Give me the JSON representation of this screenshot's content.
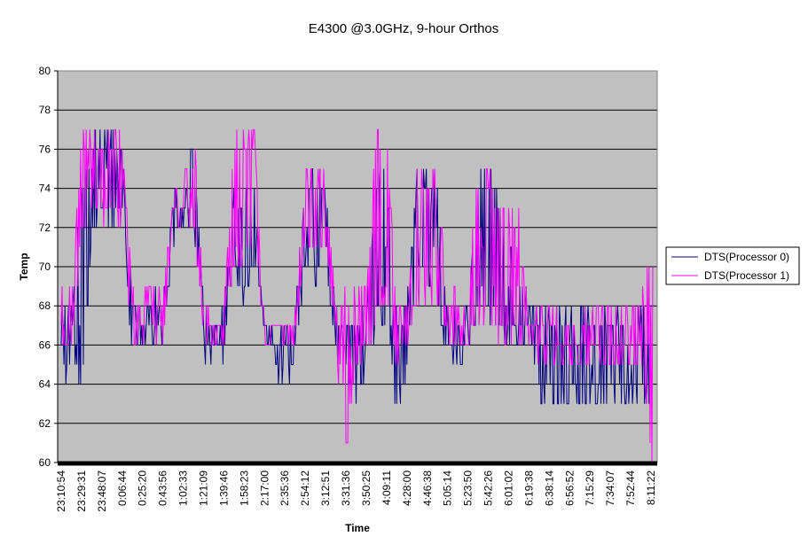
{
  "chart_data": {
    "type": "line",
    "title": "E4300 @3.0GHz, 9-hour Orthos",
    "xlabel": "Time",
    "ylabel": "Temp",
    "ylim": [
      60,
      80
    ],
    "yticks": [
      "60",
      "62",
      "64",
      "66",
      "68",
      "70",
      "72",
      "74",
      "76",
      "78",
      "80"
    ],
    "xticks": [
      "23:10:54",
      "23:29:31",
      "23:48:07",
      "0:06:44",
      "0:25:20",
      "0:43:56",
      "1:02:33",
      "1:21:09",
      "1:39:46",
      "1:58:23",
      "2:17:00",
      "2:35:36",
      "2:54:12",
      "3:12:51",
      "3:31:36",
      "3:50:25",
      "4:09:11",
      "4:28:00",
      "4:46:38",
      "5:05:14",
      "5:23:50",
      "5:42:26",
      "6:01:02",
      "6:19:38",
      "6:38:14",
      "6:56:52",
      "7:15:29",
      "7:34:07",
      "7:52:44",
      "8:11:22"
    ],
    "grid": true,
    "plot_background": "#c0c0c0",
    "legend_position": "right",
    "series": [
      {
        "name": "DTS(Processor 0)",
        "color": "#000080",
        "x": [
          0,
          0.5,
          1,
          1.5,
          2,
          2.5,
          3,
          3.5,
          4,
          4.5,
          5,
          5.5,
          6,
          6.5,
          7,
          7.5,
          8,
          8.5,
          9,
          9.5,
          10,
          10.5,
          11,
          11.5,
          12,
          12.5,
          13,
          13.5,
          14,
          14.5,
          15,
          15.5,
          16,
          16.5,
          17,
          17.5,
          18,
          18.5,
          19,
          19.5,
          20,
          20.5,
          21,
          21.5,
          22,
          22.5,
          23,
          23.5,
          24,
          24.5,
          25,
          25.5,
          26,
          26.5,
          27,
          27.5,
          28,
          28.5,
          29
        ],
        "low": [
          63,
          65,
          63,
          71,
          72,
          72,
          73,
          65,
          66,
          66,
          66,
          71,
          72,
          72,
          65,
          65,
          65,
          70,
          68,
          70,
          67,
          65,
          63,
          65,
          70,
          69,
          70,
          65,
          63,
          63,
          64,
          67,
          67,
          62,
          64,
          70,
          69,
          68,
          65,
          65,
          65,
          68,
          67,
          67,
          66,
          66,
          66,
          63,
          63,
          63,
          63,
          63,
          63,
          63,
          63,
          63,
          63,
          63,
          63
        ],
        "high": [
          68,
          68,
          74,
          77,
          77,
          77,
          77,
          69,
          68,
          69,
          68,
          74,
          74,
          77,
          68,
          67,
          68,
          74,
          74,
          74,
          67,
          67,
          67,
          68,
          75,
          75,
          75,
          68,
          67,
          68,
          68,
          75,
          75,
          68,
          68,
          75,
          75,
          75,
          68,
          68,
          68,
          75,
          75,
          74,
          72,
          70,
          68,
          68,
          68,
          68,
          68,
          68,
          68,
          68,
          68,
          68,
          68,
          68,
          68
        ]
      },
      {
        "name": "DTS(Processor 1)",
        "color": "#ff00ff",
        "x": [
          0,
          0.5,
          1,
          1.5,
          2,
          2.5,
          3,
          3.5,
          4,
          4.5,
          5,
          5.5,
          6,
          6.5,
          7,
          7.5,
          8,
          8.5,
          9,
          9.5,
          10,
          10.5,
          11,
          11.5,
          12,
          12.5,
          13,
          13.5,
          14,
          14.5,
          15,
          15.5,
          16,
          16.5,
          17,
          17.5,
          18,
          18.5,
          19,
          19.5,
          20,
          20.5,
          21,
          21.5,
          22,
          22.5,
          23,
          23.5,
          24,
          24.5,
          25,
          25.5,
          26,
          26.5,
          27,
          27.5,
          28,
          28.5,
          29
        ],
        "low": [
          65,
          66,
          71,
          72,
          72,
          72,
          72,
          66,
          66,
          66,
          66,
          72,
          72,
          72,
          66,
          66,
          66,
          70,
          70,
          71,
          66,
          66,
          66,
          66,
          71,
          70,
          71,
          66,
          60,
          65,
          65,
          67,
          68,
          65,
          66,
          68,
          68,
          68,
          66,
          66,
          66,
          67,
          67,
          66,
          66,
          66,
          66,
          65,
          65,
          65,
          65,
          65,
          65,
          65,
          65,
          65,
          65,
          65,
          60
        ],
        "high": [
          69,
          69,
          77,
          77,
          77,
          77,
          77,
          69,
          69,
          69,
          69,
          75,
          75,
          77,
          69,
          68,
          68,
          77,
          77,
          77,
          67,
          67,
          67,
          68,
          75,
          75,
          75,
          68,
          69,
          69,
          69,
          77,
          77,
          68,
          68,
          75,
          75,
          75,
          69,
          69,
          69,
          75,
          75,
          74,
          73,
          73,
          68,
          68,
          68,
          68,
          68,
          68,
          68,
          68,
          68,
          68,
          68,
          68,
          71
        ]
      }
    ]
  }
}
